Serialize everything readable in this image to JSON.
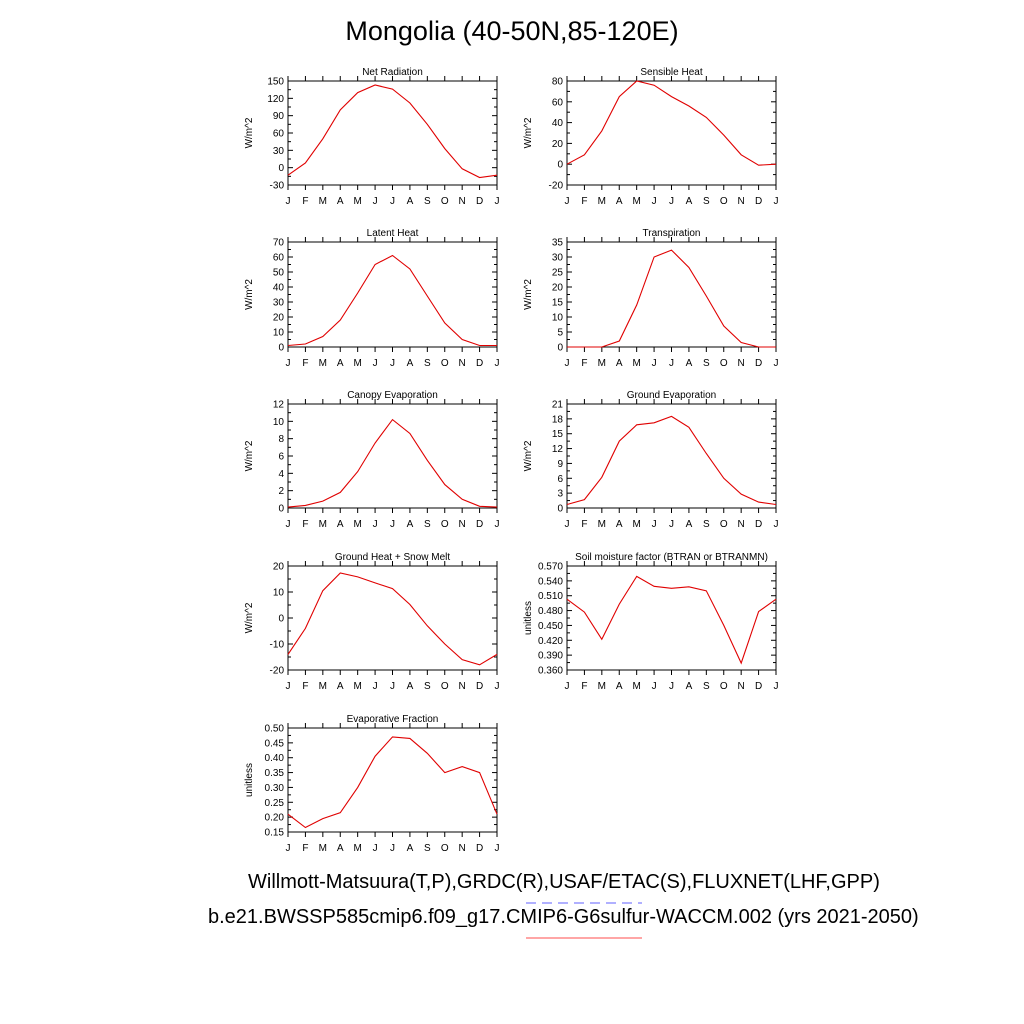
{
  "figure_title": "Mongolia (40-50N,85-120E)",
  "footer": {
    "observations": "Willmott-Matsuura(T,P),GRDC(R),USAF/ETAC(S),FLUXNET(LHF,GPP)",
    "case": "b.e21.BWSSP585cmip6.f09_g17.CMIP6-G6sulfur-WACCM.002 (yrs 2021-2050)"
  },
  "colors": {
    "model_line": "#e00000",
    "obs_dash": "#8080ff",
    "model_key": "#ff7070",
    "axis": "#000000"
  },
  "months": [
    "J",
    "F",
    "M",
    "A",
    "M",
    "J",
    "J",
    "A",
    "S",
    "O",
    "N",
    "D",
    "J"
  ],
  "chart_data": [
    {
      "type": "line",
      "title": "Net Radiation",
      "ylabel": "W/m^2",
      "ylim": [
        -30,
        150
      ],
      "yticks": [
        "-30",
        "0",
        "30",
        "60",
        "90",
        "120",
        "150"
      ],
      "ytick_values": [
        -30,
        0,
        30,
        60,
        90,
        120,
        150
      ],
      "x": [
        1,
        2,
        3,
        4,
        5,
        6,
        7,
        8,
        9,
        10,
        11,
        12,
        13
      ],
      "values": [
        -13,
        8,
        50,
        100,
        130,
        143,
        136,
        112,
        75,
        33,
        -2,
        -17,
        -13
      ]
    },
    {
      "type": "line",
      "title": "Sensible Heat",
      "ylabel": "W/m^2",
      "ylim": [
        -20,
        80
      ],
      "yticks": [
        "-20",
        "0",
        "20",
        "40",
        "60",
        "80"
      ],
      "ytick_values": [
        -20,
        0,
        20,
        40,
        60,
        80
      ],
      "x": [
        1,
        2,
        3,
        4,
        5,
        6,
        7,
        8,
        9,
        10,
        11,
        12,
        13
      ],
      "values": [
        0,
        9,
        32,
        65,
        80,
        76,
        65,
        56,
        45,
        28,
        9,
        -1,
        0
      ]
    },
    {
      "type": "line",
      "title": "Latent Heat",
      "ylabel": "W/m^2",
      "ylim": [
        0,
        70
      ],
      "yticks": [
        "0",
        "10",
        "20",
        "30",
        "40",
        "50",
        "60",
        "70"
      ],
      "ytick_values": [
        0,
        10,
        20,
        30,
        40,
        50,
        60,
        70
      ],
      "x": [
        1,
        2,
        3,
        4,
        5,
        6,
        7,
        8,
        9,
        10,
        11,
        12,
        13
      ],
      "values": [
        1,
        2,
        7,
        18,
        36,
        55,
        61,
        52,
        34,
        16,
        5,
        1,
        1
      ]
    },
    {
      "type": "line",
      "title": "Transpiration",
      "ylabel": "W/m^2",
      "ylim": [
        0,
        35
      ],
      "yticks": [
        "0",
        "5",
        "10",
        "15",
        "20",
        "25",
        "30",
        "35"
      ],
      "ytick_values": [
        0,
        5,
        10,
        15,
        20,
        25,
        30,
        35
      ],
      "x": [
        1,
        2,
        3,
        4,
        5,
        6,
        7,
        8,
        9,
        10,
        11,
        12,
        13
      ],
      "values": [
        0,
        0,
        0,
        2,
        14,
        30,
        32.3,
        26.5,
        17,
        7,
        1.5,
        0,
        0
      ]
    },
    {
      "type": "line",
      "title": "Canopy Evaporation",
      "ylabel": "W/m^2",
      "ylim": [
        0,
        12
      ],
      "yticks": [
        "0",
        "2",
        "4",
        "6",
        "8",
        "10",
        "12"
      ],
      "ytick_values": [
        0,
        2,
        4,
        6,
        8,
        10,
        12
      ],
      "x": [
        1,
        2,
        3,
        4,
        5,
        6,
        7,
        8,
        9,
        10,
        11,
        12,
        13
      ],
      "values": [
        0.1,
        0.3,
        0.8,
        1.8,
        4.2,
        7.5,
        10.2,
        8.6,
        5.5,
        2.7,
        1.0,
        0.2,
        0.1
      ]
    },
    {
      "type": "line",
      "title": "Ground Evaporation",
      "ylabel": "W/m^2",
      "ylim": [
        0,
        21
      ],
      "yticks": [
        "0",
        "3",
        "6",
        "9",
        "12",
        "15",
        "18",
        "21"
      ],
      "ytick_values": [
        0,
        3,
        6,
        9,
        12,
        15,
        18,
        21
      ],
      "x": [
        1,
        2,
        3,
        4,
        5,
        6,
        7,
        8,
        9,
        10,
        11,
        12,
        13
      ],
      "values": [
        0.7,
        1.7,
        6.2,
        13.5,
        16.8,
        17.2,
        18.5,
        16.3,
        11.0,
        6.0,
        2.8,
        1.2,
        0.7
      ]
    },
    {
      "type": "line",
      "title": "Ground Heat + Snow Melt",
      "ylabel": "W/m^2",
      "ylim": [
        -20,
        20
      ],
      "yticks": [
        "-20",
        "-10",
        "0",
        "10",
        "20"
      ],
      "ytick_values": [
        -20,
        -10,
        0,
        10,
        20
      ],
      "x": [
        1,
        2,
        3,
        4,
        5,
        6,
        7,
        8,
        9,
        10,
        11,
        12,
        13
      ],
      "values": [
        -14,
        -4,
        10.5,
        17.3,
        15.8,
        13.5,
        11.3,
        5.2,
        -3,
        -10,
        -16,
        -18,
        -14
      ]
    },
    {
      "type": "line",
      "title": "Soil moisture factor (BTRAN or BTRANMN)",
      "ylabel": "unitless",
      "ylim": [
        0.36,
        0.57
      ],
      "yticks": [
        "0.360",
        "0.390",
        "0.420",
        "0.450",
        "0.480",
        "0.510",
        "0.540",
        "0.570"
      ],
      "ytick_values": [
        0.36,
        0.39,
        0.42,
        0.45,
        0.48,
        0.51,
        0.54,
        0.57
      ],
      "x": [
        1,
        2,
        3,
        4,
        5,
        6,
        7,
        8,
        9,
        10,
        11,
        12,
        13
      ],
      "values": [
        0.503,
        0.477,
        0.422,
        0.493,
        0.549,
        0.529,
        0.525,
        0.528,
        0.52,
        0.45,
        0.374,
        0.478,
        0.503
      ]
    },
    {
      "type": "line",
      "title": "Evaporative Fraction",
      "ylabel": "unitless",
      "ylim": [
        0.15,
        0.5
      ],
      "yticks": [
        "0.15",
        "0.20",
        "0.25",
        "0.30",
        "0.35",
        "0.40",
        "0.45",
        "0.50"
      ],
      "ytick_values": [
        0.15,
        0.2,
        0.25,
        0.3,
        0.35,
        0.4,
        0.45,
        0.5
      ],
      "x": [
        1,
        2,
        3,
        4,
        5,
        6,
        7,
        8,
        9,
        10,
        11,
        12,
        13
      ],
      "values": [
        0.21,
        0.165,
        0.195,
        0.215,
        0.3,
        0.405,
        0.47,
        0.465,
        0.415,
        0.35,
        0.37,
        0.35,
        0.21
      ]
    }
  ]
}
